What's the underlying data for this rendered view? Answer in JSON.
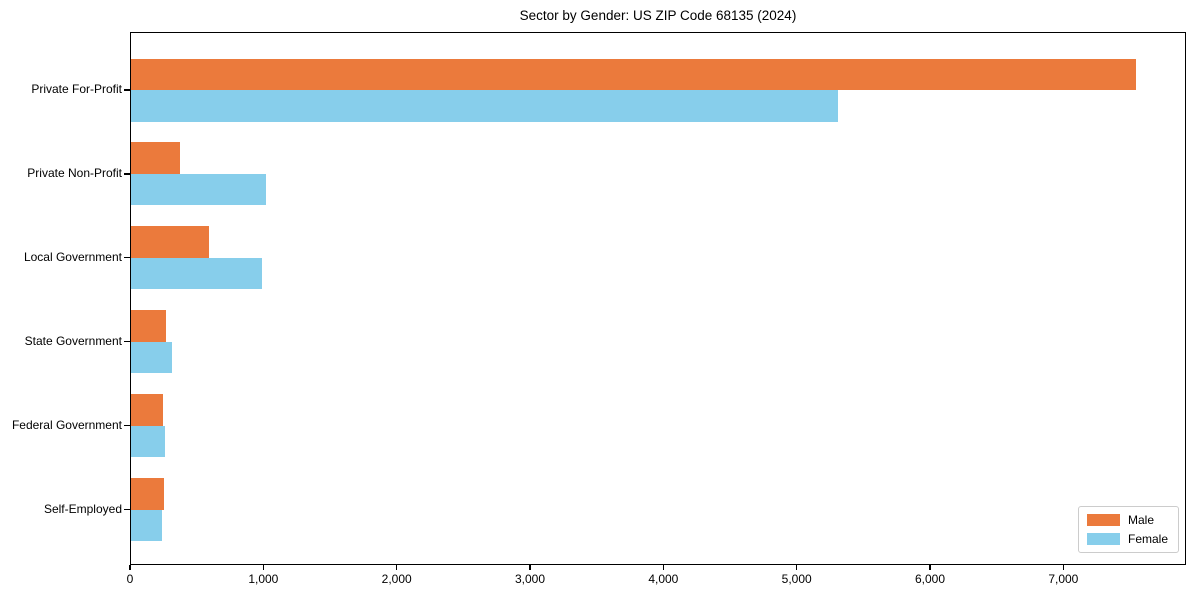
{
  "chart_data": {
    "type": "bar",
    "orientation": "horizontal",
    "title": "Sector by Gender: US ZIP Code 68135 (2024)",
    "categories": [
      "Private For-Profit",
      "Private Non-Profit",
      "Local Government",
      "State Government",
      "Federal Government",
      "Self-Employed"
    ],
    "series": [
      {
        "name": "Male",
        "color": "#EB7A3C",
        "values": [
          7540,
          370,
          585,
          265,
          240,
          250
        ]
      },
      {
        "name": "Female",
        "color": "#87CEEB",
        "values": [
          5300,
          1010,
          980,
          305,
          255,
          230
        ]
      }
    ],
    "xlabel": "",
    "ylabel": "",
    "xlim": [
      0,
      7920
    ],
    "x_ticks": [
      0,
      1000,
      2000,
      3000,
      4000,
      5000,
      6000,
      7000
    ],
    "x_tick_labels": [
      "0",
      "1,000",
      "2,000",
      "3,000",
      "4,000",
      "5,000",
      "6,000",
      "7,000"
    ],
    "grid": false,
    "legend_position": "lower right",
    "background_color": "#ffffff",
    "spine_color": "#000000"
  }
}
